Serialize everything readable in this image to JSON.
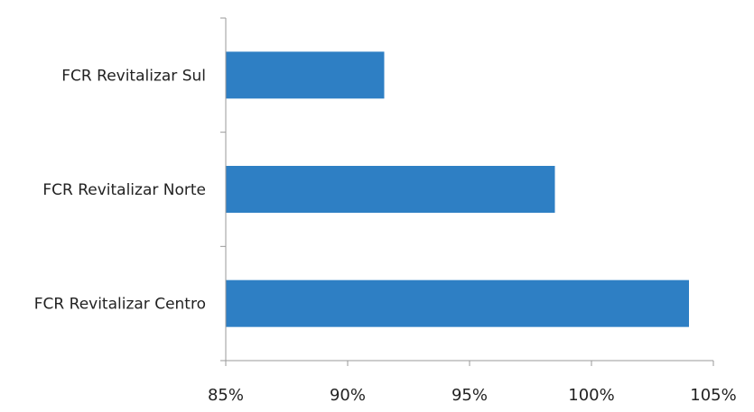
{
  "chart_data": {
    "type": "bar",
    "orientation": "horizontal",
    "categories": [
      "FCR Revitalizar Sul",
      "FCR Revitalizar Norte",
      "FCR Revitalizar Centro"
    ],
    "values": [
      91.5,
      98.5,
      104
    ],
    "x_ticks": [
      "85%",
      "90%",
      "95%",
      "100%",
      "105%"
    ],
    "xlim": [
      85,
      105
    ],
    "bar_color": "#2e7fc4",
    "grid": false,
    "legend": "none",
    "title": "",
    "xlabel": "",
    "ylabel": ""
  }
}
